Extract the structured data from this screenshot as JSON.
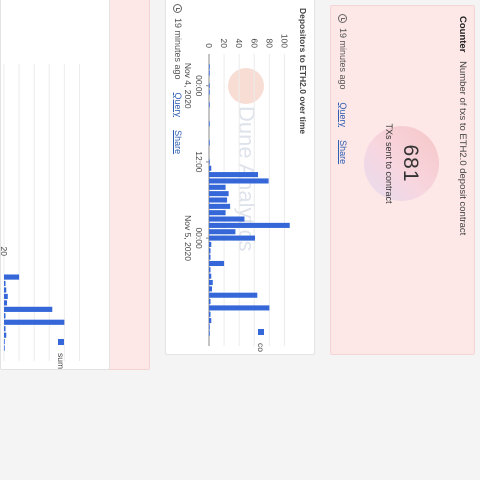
{
  "counter": {
    "type_label": "Counter",
    "title": "Number of txs to ETH2.0 deposit contract",
    "value": "681",
    "value_label": "TXs sent to contract",
    "updated": "19 minutes ago",
    "query_label": "Query",
    "share_label": "Share"
  },
  "chart1": {
    "title": "Depositors to ETH2.0 over time",
    "legend_label": "co",
    "updated": "19 minutes ago",
    "query_label": "Query",
    "share_label": "Share",
    "watermark": "Dune Analytics",
    "colors": {
      "bar": "#3567d8",
      "grid": "#ececec",
      "axis": "#888888"
    }
  },
  "chart2": {
    "legend_label": "sum",
    "x_tick_partial": "20"
  },
  "chart_data": [
    {
      "type": "bar",
      "title": "Depositors to ETH2.0 over time",
      "x_ticks": [
        {
          "label": "00:00",
          "sublabel": "Nov 4, 2020",
          "h": 0
        },
        {
          "label": "12:00",
          "sublabel": "",
          "h": 12
        },
        {
          "label": "00:00",
          "sublabel": "Nov 5, 2020",
          "h": 24
        }
      ],
      "y_ticks": [
        0,
        20,
        40,
        60,
        80,
        100
      ],
      "ylim": [
        0,
        110
      ],
      "xlim": [
        -5,
        41
      ],
      "series": [
        {
          "name": "co",
          "x": [
            -3,
            -2,
            0,
            1,
            3,
            6,
            9,
            12,
            13,
            14,
            15,
            16,
            17,
            18,
            19,
            20,
            21,
            22,
            23,
            24,
            25,
            26,
            27,
            28,
            29,
            30,
            31,
            32,
            33,
            34,
            35,
            36,
            37,
            38,
            39
          ],
          "values": [
            1,
            1,
            1,
            1,
            1,
            1,
            1,
            1,
            3,
            65,
            79,
            22,
            26,
            24,
            28,
            22,
            47,
            107,
            35,
            61,
            3,
            2,
            2,
            20,
            2,
            3,
            5,
            4,
            64,
            2,
            80,
            2,
            3,
            1,
            1
          ]
        }
      ]
    },
    {
      "type": "bar",
      "series": [
        {
          "name": "sum",
          "x": [
            28,
            29,
            30,
            31,
            32,
            33,
            34,
            35,
            36,
            37,
            38,
            39
          ],
          "values": [
            20,
            2,
            3,
            5,
            4,
            64,
            2,
            80,
            2,
            3,
            1,
            1
          ]
        }
      ]
    }
  ]
}
